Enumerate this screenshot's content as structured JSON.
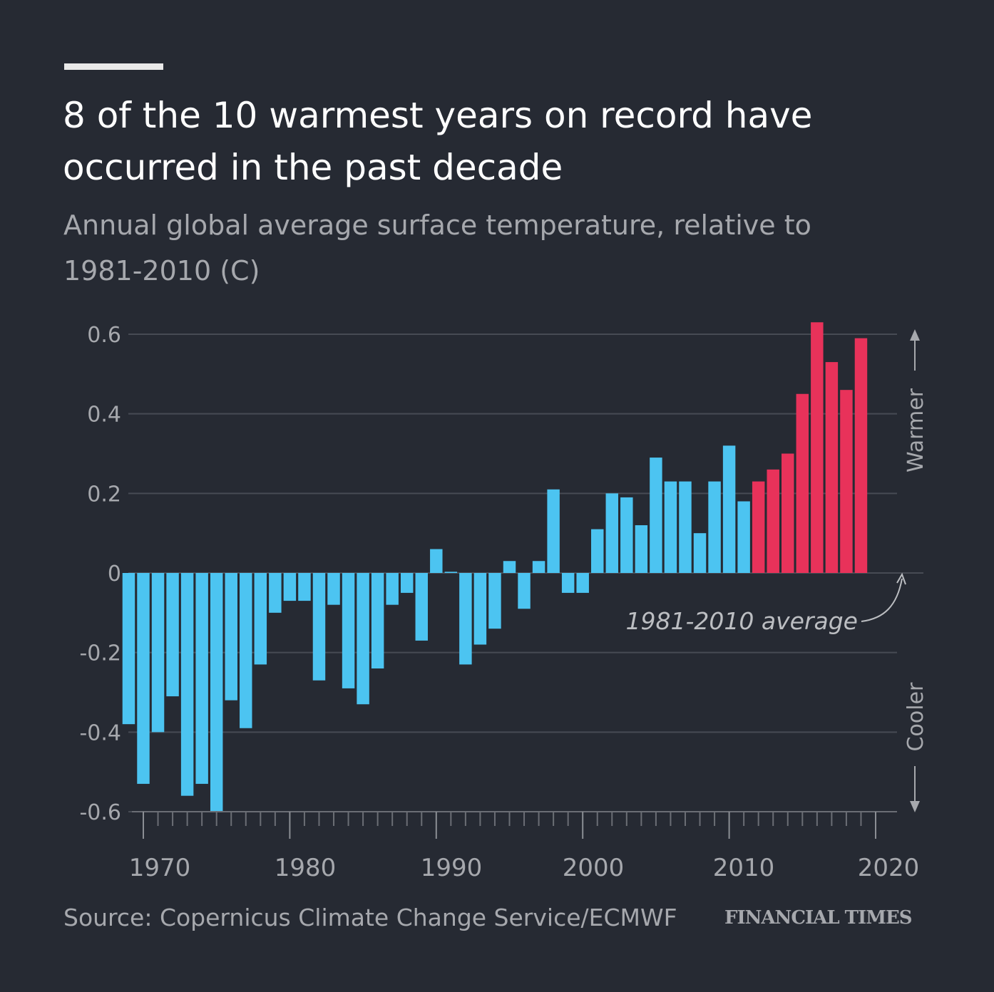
{
  "header": {
    "title": "8 of the 10 warmest years on record have occurred in the past decade",
    "subtitle": "Annual global average surface temperature, relative to 1981-2010 (C)"
  },
  "footer": {
    "source": "Source: Copernicus Climate Change Service/ECMWF",
    "brand": "FINANCIAL TIMES"
  },
  "chart_data": {
    "type": "bar",
    "title": "8 of the 10 warmest years on record have occurred in the past decade",
    "subtitle": "Annual global average surface temperature, relative to 1981-2010 (C)",
    "xlabel": "",
    "ylabel": "",
    "ylim": [
      -0.6,
      0.6
    ],
    "yticks": [
      0.6,
      0.4,
      0.2,
      0,
      -0.2,
      -0.4,
      -0.6
    ],
    "ytick_labels": [
      "0.6",
      "0.4",
      "0.2",
      "0",
      "-0.2",
      "-0.4",
      "-0.6"
    ],
    "xticks": [
      1970,
      1980,
      1990,
      2000,
      2010,
      2020
    ],
    "xtick_labels": [
      "1970",
      "1980",
      "1990",
      "2000",
      "2010",
      "2020"
    ],
    "grid": true,
    "colors": {
      "cool": "#4cc4f1",
      "warm": "#e8325a",
      "grid": "#474b54",
      "axis": "#6b6e75"
    },
    "highlight_from_year": 2012,
    "categories": [
      1969,
      1970,
      1971,
      1972,
      1973,
      1974,
      1975,
      1976,
      1977,
      1978,
      1979,
      1980,
      1981,
      1982,
      1983,
      1984,
      1985,
      1986,
      1987,
      1988,
      1989,
      1990,
      1991,
      1992,
      1993,
      1994,
      1995,
      1996,
      1997,
      1998,
      1999,
      2000,
      2001,
      2002,
      2003,
      2004,
      2005,
      2006,
      2007,
      2008,
      2009,
      2010,
      2011,
      2012,
      2013,
      2014,
      2015,
      2016,
      2017,
      2018,
      2019
    ],
    "values": [
      -0.38,
      -0.53,
      -0.4,
      -0.31,
      -0.56,
      -0.53,
      -0.6,
      -0.32,
      -0.39,
      -0.23,
      -0.1,
      -0.07,
      -0.07,
      -0.27,
      -0.08,
      -0.29,
      -0.33,
      -0.24,
      -0.08,
      -0.05,
      -0.17,
      0.06,
      0.003,
      -0.23,
      -0.18,
      -0.14,
      0.03,
      -0.09,
      0.03,
      0.21,
      -0.05,
      -0.05,
      0.11,
      0.2,
      0.19,
      0.12,
      0.29,
      0.23,
      0.23,
      0.1,
      0.23,
      0.32,
      0.18,
      0.23,
      0.26,
      0.3,
      0.45,
      0.63,
      0.53,
      0.46,
      0.59
    ],
    "annotations": {
      "average": "1981-2010 average",
      "warmer": "Warmer",
      "cooler": "Cooler"
    }
  }
}
